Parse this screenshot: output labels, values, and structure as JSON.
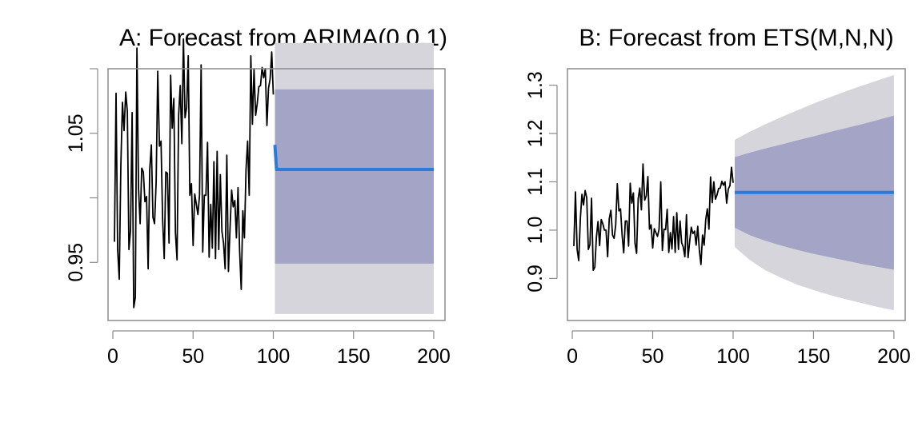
{
  "chart_data": [
    {
      "type": "line",
      "title": "A: Forecast from ARIMA(0,0,1)",
      "xlabel": "",
      "ylabel": "",
      "xlim": [
        -3,
        207
      ],
      "ylim": [
        0.905,
        1.1
      ],
      "x_ticks": [
        0,
        50,
        100,
        150,
        200
      ],
      "x_tick_labels": [
        "0",
        "50",
        "100",
        "150",
        "200"
      ],
      "y_ticks": [
        0.95,
        1.0,
        1.05,
        1.1
      ],
      "y_tick_labels": [
        "0.95",
        "",
        "1.05",
        ""
      ],
      "grid": false,
      "colors": {
        "history": "#000000",
        "forecast": "#2b7bdc",
        "pi95": "#d5d5db",
        "pi80": "#a3a4c6"
      },
      "history": {
        "x": [
          1,
          2,
          3,
          4,
          5,
          6,
          7,
          8,
          9,
          10,
          11,
          12,
          13,
          14,
          15,
          16,
          17,
          18,
          19,
          20,
          21,
          22,
          23,
          24,
          25,
          26,
          27,
          28,
          29,
          30,
          31,
          32,
          33,
          34,
          35,
          36,
          37,
          38,
          39,
          40,
          41,
          42,
          43,
          44,
          45,
          46,
          47,
          48,
          49,
          50,
          51,
          52,
          53,
          54,
          55,
          56,
          57,
          58,
          59,
          60,
          61,
          62,
          63,
          64,
          65,
          66,
          67,
          68,
          69,
          70,
          71,
          72,
          73,
          74,
          75,
          76,
          77,
          78,
          79,
          80,
          81,
          82,
          83,
          84,
          85,
          86,
          87,
          88,
          89,
          90,
          91,
          92,
          93,
          94,
          95,
          96,
          97,
          98,
          99,
          100
        ],
        "y": [
          0.966,
          1.081,
          0.96,
          0.937,
          1.025,
          1.074,
          1.052,
          1.082,
          1.067,
          0.96,
          0.975,
          1.066,
          0.915,
          0.923,
          1.116,
          1.007,
          0.98,
          1.023,
          1.02,
          0.997,
          1.001,
          0.945,
          1.022,
          1.041,
          0.985,
          0.98,
          1.012,
          1.098,
          1.04,
          1.044,
          0.983,
          0.953,
          1.02,
          1.019,
          0.965,
          1.095,
          1.054,
          1.077,
          0.973,
          0.952,
          1.064,
          1.087,
          1.042,
          1.123,
          1.062,
          1.07,
          1.11,
          1.002,
          1.011,
          0.963,
          1.003,
          0.995,
          0.987,
          1.002,
          1.103,
          0.958,
          1.002,
          1.002,
          1.043,
          0.954,
          0.995,
          0.961,
          1.028,
          0.953,
          1.036,
          0.96,
          1.018,
          0.974,
          0.965,
          0.945,
          1.033,
          0.943,
          0.976,
          1.006,
          0.993,
          0.998,
          0.969,
          1.008,
          0.959,
          0.929,
          0.99,
          0.969,
          1.022,
          1.044,
          1.002,
          1.11,
          1.057,
          1.1,
          1.064,
          1.073,
          1.086,
          1.087,
          1.101,
          1.093,
          1.1,
          1.056,
          1.085,
          1.092,
          1.113,
          1.08
        ]
      },
      "point_forecast": {
        "x": [
          101,
          102,
          103,
          104,
          120,
          140,
          160,
          180,
          200
        ],
        "y": [
          1.041,
          1.022,
          1.022,
          1.022,
          1.022,
          1.022,
          1.022,
          1.022,
          1.022
        ]
      },
      "pi80": {
        "x_start": 101,
        "x_end": 200,
        "lower": 0.949,
        "upper": 1.084
      },
      "pi95": {
        "x_start": 101,
        "x_end": 200,
        "lower": 0.91,
        "upper": 1.12
      }
    },
    {
      "type": "line",
      "title": "B: Forecast from ETS(M,N,N)",
      "xlabel": "",
      "ylabel": "",
      "xlim": [
        -3,
        207
      ],
      "ylim": [
        0.813,
        1.334
      ],
      "x_ticks": [
        0,
        50,
        100,
        150,
        200
      ],
      "x_tick_labels": [
        "0",
        "50",
        "100",
        "150",
        "200"
      ],
      "y_ticks": [
        0.9,
        1.0,
        1.1,
        1.2,
        1.3
      ],
      "y_tick_labels": [
        "0.9",
        "1.0",
        "1.1",
        "1.2",
        "1.3"
      ],
      "grid": false,
      "colors": {
        "history": "#000000",
        "forecast": "#2b7bdc",
        "pi95": "#d5d5db",
        "pi80": "#a3a4c6"
      },
      "history": {
        "x": [
          1,
          2,
          3,
          4,
          5,
          6,
          7,
          8,
          9,
          10,
          11,
          12,
          13,
          14,
          15,
          16,
          17,
          18,
          19,
          20,
          21,
          22,
          23,
          24,
          25,
          26,
          27,
          28,
          29,
          30,
          31,
          32,
          33,
          34,
          35,
          36,
          37,
          38,
          39,
          40,
          41,
          42,
          43,
          44,
          45,
          46,
          47,
          48,
          49,
          50,
          51,
          52,
          53,
          54,
          55,
          56,
          57,
          58,
          59,
          60,
          61,
          62,
          63,
          64,
          65,
          66,
          67,
          68,
          69,
          70,
          71,
          72,
          73,
          74,
          75,
          76,
          77,
          78,
          79,
          80,
          81,
          82,
          83,
          84,
          85,
          86,
          87,
          88,
          89,
          90,
          91,
          92,
          93,
          94,
          95,
          96,
          97,
          98,
          99,
          100
        ],
        "y": [
          0.967,
          1.079,
          0.96,
          0.937,
          1.023,
          1.074,
          1.052,
          1.082,
          1.067,
          0.96,
          0.97,
          1.066,
          0.917,
          0.923,
          0.986,
          1.018,
          0.968,
          1.022,
          1.013,
          1.0,
          1.0,
          0.945,
          1.023,
          1.041,
          0.99,
          0.983,
          1.011,
          1.096,
          1.04,
          1.044,
          0.99,
          0.953,
          1.019,
          1.019,
          0.967,
          1.097,
          1.056,
          1.077,
          0.973,
          0.952,
          1.065,
          1.087,
          1.042,
          1.137,
          1.062,
          1.071,
          1.111,
          1.002,
          1.011,
          0.963,
          1.003,
          0.995,
          0.987,
          1.002,
          1.1,
          0.958,
          1.002,
          1.001,
          1.043,
          0.954,
          0.995,
          0.961,
          1.028,
          0.954,
          1.036,
          0.96,
          1.019,
          0.974,
          0.965,
          0.945,
          1.032,
          0.943,
          0.976,
          1.006,
          0.993,
          0.998,
          0.969,
          1.008,
          0.959,
          0.929,
          0.99,
          0.969,
          1.022,
          1.044,
          1.002,
          1.11,
          1.057,
          1.1,
          1.064,
          1.073,
          1.086,
          1.087,
          1.101,
          1.093,
          1.1,
          1.056,
          1.085,
          1.092,
          1.13,
          1.098
        ]
      },
      "point_forecast": {
        "x": [
          101,
          200
        ],
        "y": [
          1.078,
          1.078
        ]
      },
      "pi80": {
        "x": [
          101,
          110,
          120,
          130,
          140,
          150,
          160,
          170,
          180,
          190,
          200
        ],
        "lower": [
          1.005,
          0.99,
          0.978,
          0.968,
          0.959,
          0.951,
          0.944,
          0.937,
          0.93,
          0.924,
          0.918
        ],
        "upper": [
          1.151,
          1.16,
          1.169,
          1.177,
          1.186,
          1.194,
          1.203,
          1.211,
          1.219,
          1.228,
          1.237
        ]
      },
      "pi95": {
        "x": [
          101,
          110,
          120,
          130,
          140,
          150,
          160,
          170,
          180,
          190,
          200
        ],
        "lower": [
          0.965,
          0.939,
          0.917,
          0.901,
          0.887,
          0.876,
          0.866,
          0.857,
          0.849,
          0.841,
          0.834
        ],
        "upper": [
          1.187,
          1.203,
          1.219,
          1.234,
          1.248,
          1.262,
          1.275,
          1.287,
          1.299,
          1.31,
          1.321
        ]
      }
    }
  ]
}
